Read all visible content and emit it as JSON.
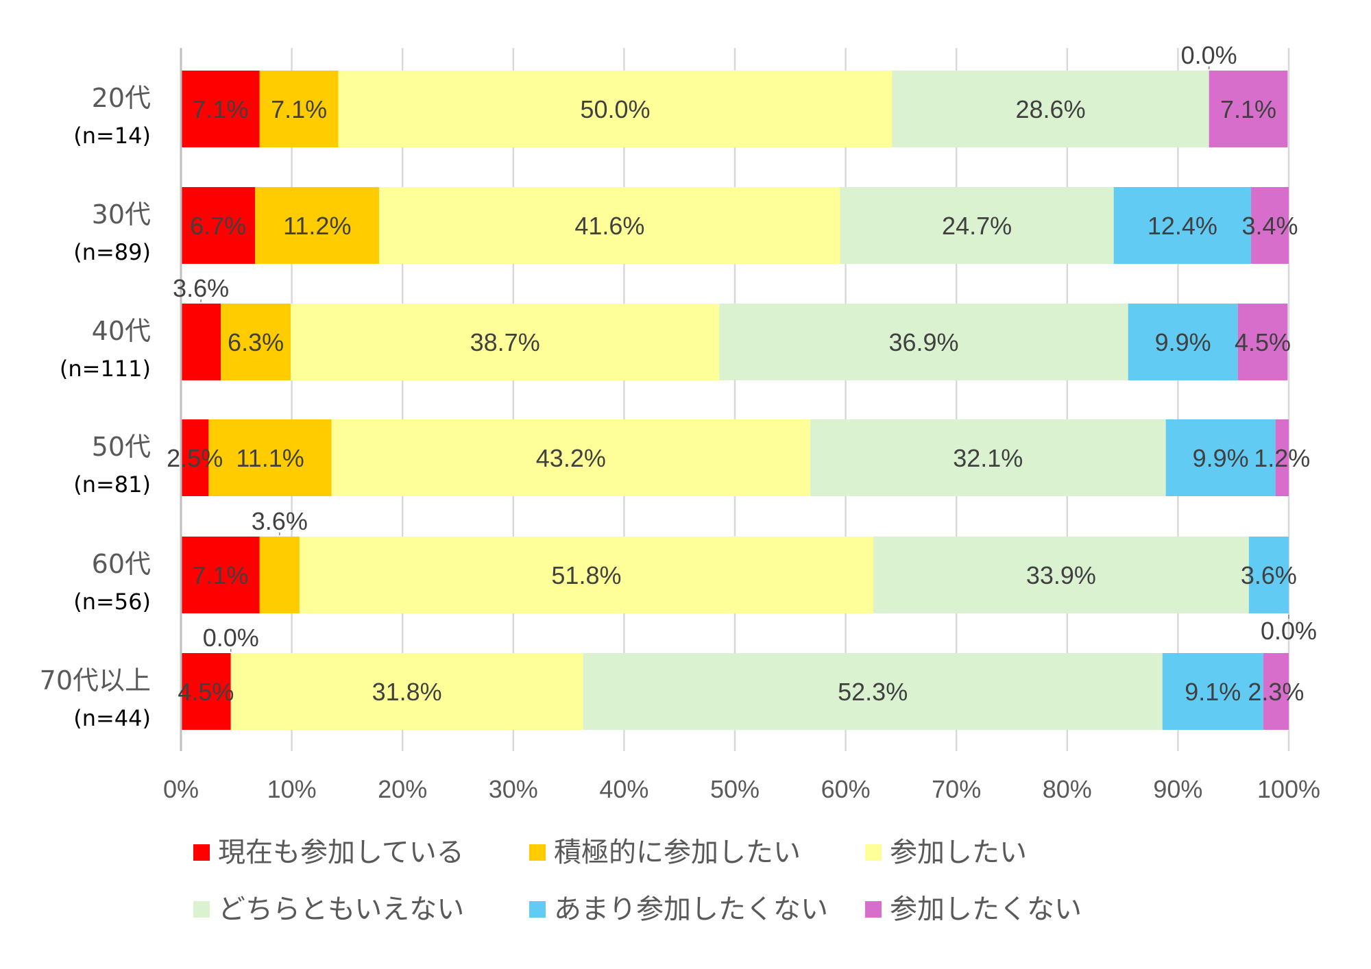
{
  "chart_data": {
    "type": "bar",
    "orientation": "horizontal",
    "stacked": "percent",
    "title": "",
    "xlabel": "",
    "ylabel": "",
    "xlim": [
      0,
      100
    ],
    "grid": true,
    "legend_position": "bottom",
    "x_ticks": [
      "0%",
      "10%",
      "20%",
      "30%",
      "40%",
      "50%",
      "60%",
      "70%",
      "80%",
      "90%",
      "100%"
    ],
    "categories": [
      {
        "label": "20代",
        "n": "(n=14)"
      },
      {
        "label": "30代",
        "n": "(n=89)"
      },
      {
        "label": "40代",
        "n": "(n=111)"
      },
      {
        "label": "50代",
        "n": "(n=81)"
      },
      {
        "label": "60代",
        "n": "(n=56)"
      },
      {
        "label": "70代以上",
        "n": "(n=44)"
      }
    ],
    "series": [
      {
        "name": "現在も参加している",
        "color": "#FF0000",
        "values": [
          7.1,
          6.7,
          3.6,
          2.5,
          7.1,
          4.5
        ]
      },
      {
        "name": "積極的に参加したい",
        "color": "#FFCC00",
        "values": [
          7.1,
          11.2,
          6.3,
          11.1,
          3.6,
          0.0
        ]
      },
      {
        "name": "参加したい",
        "color": "#FFFF99",
        "values": [
          50.0,
          41.6,
          38.7,
          43.2,
          51.8,
          31.8
        ]
      },
      {
        "name": "どちらともいえない",
        "color": "#DAF2D0",
        "values": [
          28.6,
          24.7,
          36.9,
          32.1,
          33.9,
          52.3
        ]
      },
      {
        "name": "あまり参加したくない",
        "color": "#61CBF3",
        "values": [
          0.0,
          12.4,
          9.9,
          9.9,
          3.6,
          9.1
        ]
      },
      {
        "name": "参加したくない",
        "color": "#D86ECC",
        "values": [
          7.1,
          3.4,
          4.5,
          1.2,
          0.0,
          2.3
        ]
      }
    ]
  }
}
